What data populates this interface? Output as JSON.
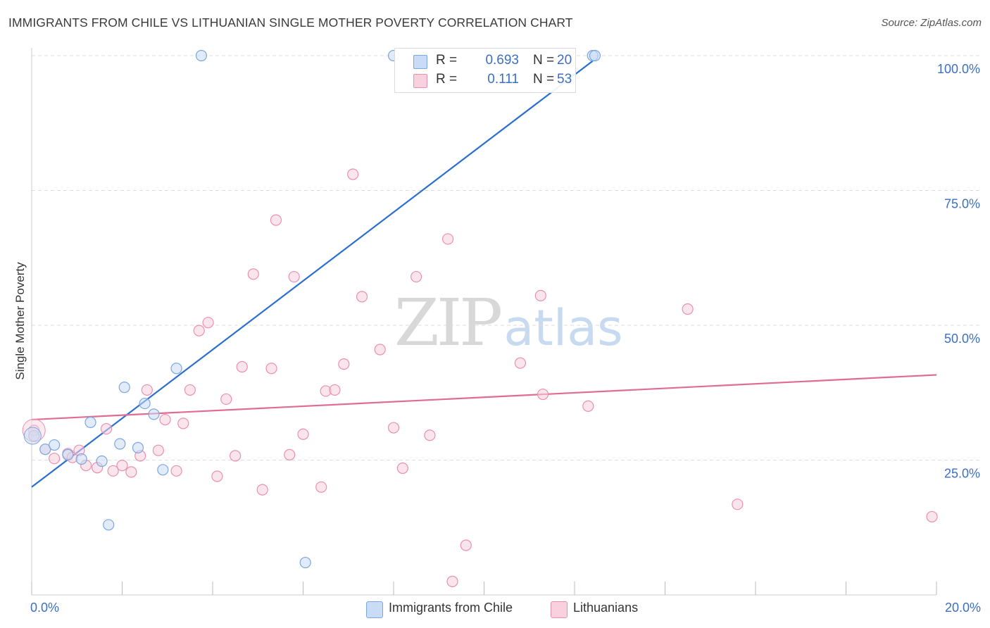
{
  "title": "IMMIGRANTS FROM CHILE VS LITHUANIAN SINGLE MOTHER POVERTY CORRELATION CHART",
  "source": "Source: ZipAtlas.com",
  "watermark": {
    "zip": "ZIP",
    "atlas": "atlas"
  },
  "colors": {
    "blue": "#7aa7e0",
    "blue_fill": "#c9dbf5",
    "blue_line": "#2a6fd0",
    "pink": "#ea8fae",
    "pink_fill": "#f8d0de",
    "pink_line": "#e06c95",
    "tick_label": "#3b6fc4",
    "grid": "#dddddd"
  },
  "legend_top": [
    {
      "r_label": "R =",
      "r_value": "0.693",
      "n_label": "N =",
      "n_value": "20"
    },
    {
      "r_label": "R =",
      "r_value": "0.111",
      "n_label": "N =",
      "n_value": "53"
    }
  ],
  "legend_bottom": [
    "Immigrants from Chile",
    "Lithuanians"
  ],
  "chart_data": {
    "type": "scatter",
    "title": "IMMIGRANTS FROM CHILE VS LITHUANIAN SINGLE MOTHER POVERTY CORRELATION CHART",
    "xlabel": "",
    "ylabel": "Single Mother Poverty",
    "xlim": [
      0,
      20
    ],
    "ylim": [
      0,
      102
    ],
    "x_tick_labels": [
      "0.0%",
      "20.0%"
    ],
    "x_tick_label_values": [
      0,
      20
    ],
    "x_minor_ticks": [
      0,
      2,
      4,
      6,
      8,
      10,
      12,
      14,
      16,
      18,
      20
    ],
    "y_ticks": [
      25,
      50,
      75,
      100
    ],
    "y_tick_labels": [
      "25.0%",
      "50.0%",
      "75.0%",
      "100.0%"
    ],
    "grid": true,
    "legend_position": "top-center",
    "series": [
      {
        "name": "Immigrants from Chile",
        "r": 0.693,
        "n": 20,
        "points": [
          [
            0.05,
            29.5
          ],
          [
            0.3,
            27.0
          ],
          [
            0.5,
            27.8
          ],
          [
            0.8,
            26.0
          ],
          [
            1.1,
            25.2
          ],
          [
            1.3,
            32.0
          ],
          [
            1.55,
            24.8
          ],
          [
            1.7,
            13.0
          ],
          [
            1.95,
            28.0
          ],
          [
            2.05,
            38.5
          ],
          [
            2.35,
            27.3
          ],
          [
            2.5,
            35.5
          ],
          [
            2.7,
            33.5
          ],
          [
            2.9,
            23.2
          ],
          [
            3.2,
            42.0
          ],
          [
            3.75,
            100.0
          ],
          [
            6.05,
            6.0
          ],
          [
            8.0,
            100.0
          ],
          [
            12.4,
            100.0
          ],
          [
            12.45,
            100.0
          ]
        ],
        "trend": {
          "x": [
            0,
            12.4
          ],
          "y": [
            20.0,
            99.0
          ]
        }
      },
      {
        "name": "Lithuanians",
        "r": 0.111,
        "n": 53,
        "points": [
          [
            0.05,
            30.5
          ],
          [
            0.3,
            27.0
          ],
          [
            0.5,
            25.3
          ],
          [
            0.8,
            26.2
          ],
          [
            0.9,
            25.5
          ],
          [
            1.05,
            26.8
          ],
          [
            1.2,
            24.0
          ],
          [
            1.45,
            23.6
          ],
          [
            1.65,
            30.8
          ],
          [
            1.8,
            23.0
          ],
          [
            2.0,
            24.0
          ],
          [
            2.2,
            22.8
          ],
          [
            2.4,
            25.8
          ],
          [
            2.55,
            38.0
          ],
          [
            2.8,
            26.8
          ],
          [
            2.95,
            32.5
          ],
          [
            3.2,
            23.0
          ],
          [
            3.35,
            31.8
          ],
          [
            3.5,
            38.0
          ],
          [
            3.7,
            49.0
          ],
          [
            3.9,
            50.5
          ],
          [
            4.1,
            22.0
          ],
          [
            4.3,
            36.3
          ],
          [
            4.5,
            25.8
          ],
          [
            4.65,
            42.3
          ],
          [
            4.9,
            59.5
          ],
          [
            5.1,
            19.5
          ],
          [
            5.3,
            42.0
          ],
          [
            5.4,
            69.5
          ],
          [
            5.7,
            26.0
          ],
          [
            5.8,
            59.0
          ],
          [
            6.0,
            29.8
          ],
          [
            6.4,
            20.0
          ],
          [
            6.5,
            37.8
          ],
          [
            6.7,
            38.0
          ],
          [
            6.9,
            42.8
          ],
          [
            7.1,
            78.0
          ],
          [
            7.3,
            55.3
          ],
          [
            7.7,
            45.5
          ],
          [
            8.0,
            31.0
          ],
          [
            8.2,
            23.5
          ],
          [
            8.5,
            59.0
          ],
          [
            8.8,
            29.6
          ],
          [
            9.2,
            66.0
          ],
          [
            9.3,
            2.5
          ],
          [
            9.6,
            9.2
          ],
          [
            10.8,
            43.0
          ],
          [
            11.25,
            55.5
          ],
          [
            11.3,
            37.2
          ],
          [
            12.3,
            35.0
          ],
          [
            14.5,
            53.0
          ],
          [
            15.6,
            16.8
          ],
          [
            19.9,
            14.5
          ]
        ],
        "trend": {
          "x": [
            0,
            20
          ],
          "y": [
            32.5,
            40.8
          ]
        }
      }
    ]
  }
}
